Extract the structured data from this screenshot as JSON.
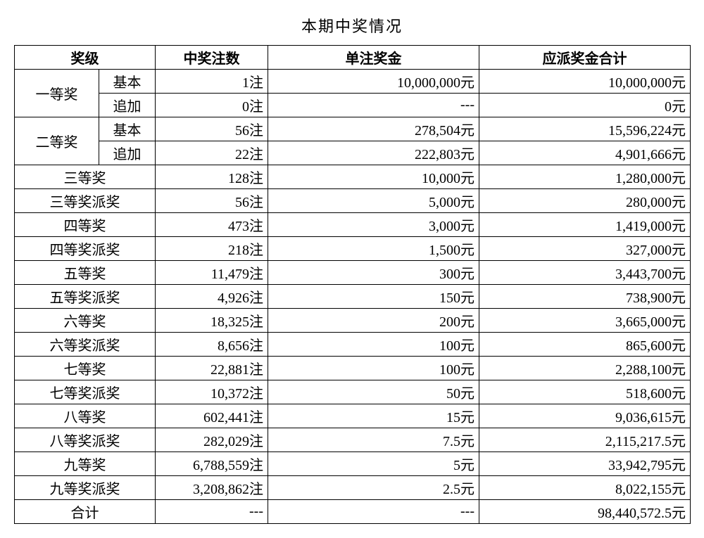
{
  "title": "本期中奖情况",
  "headers": {
    "level": "奖级",
    "count": "中奖注数",
    "unit": "单注奖金",
    "total": "应派奖金合计"
  },
  "groups": {
    "first": "一等奖",
    "second": "二等奖",
    "basic": "基本",
    "add": "追加"
  },
  "rows": {
    "r01": {
      "count": "1注",
      "unit": "10,000,000元",
      "total": "10,000,000元"
    },
    "r02": {
      "count": "0注",
      "unit": "---",
      "total": "0元"
    },
    "r03": {
      "count": "56注",
      "unit": "278,504元",
      "total": "15,596,224元"
    },
    "r04": {
      "count": "22注",
      "unit": "222,803元",
      "total": "4,901,666元"
    },
    "r05": {
      "level": "三等奖",
      "count": "128注",
      "unit": "10,000元",
      "total": "1,280,000元"
    },
    "r06": {
      "level": "三等奖派奖",
      "count": "56注",
      "unit": "5,000元",
      "total": "280,000元"
    },
    "r07": {
      "level": "四等奖",
      "count": "473注",
      "unit": "3,000元",
      "total": "1,419,000元"
    },
    "r08": {
      "level": "四等奖派奖",
      "count": "218注",
      "unit": "1,500元",
      "total": "327,000元"
    },
    "r09": {
      "level": "五等奖",
      "count": "11,479注",
      "unit": "300元",
      "total": "3,443,700元"
    },
    "r10": {
      "level": "五等奖派奖",
      "count": "4,926注",
      "unit": "150元",
      "total": "738,900元"
    },
    "r11": {
      "level": "六等奖",
      "count": "18,325注",
      "unit": "200元",
      "total": "3,665,000元"
    },
    "r12": {
      "level": "六等奖派奖",
      "count": "8,656注",
      "unit": "100元",
      "total": "865,600元"
    },
    "r13": {
      "level": "七等奖",
      "count": "22,881注",
      "unit": "100元",
      "total": "2,288,100元"
    },
    "r14": {
      "level": "七等奖派奖",
      "count": "10,372注",
      "unit": "50元",
      "total": "518,600元"
    },
    "r15": {
      "level": "八等奖",
      "count": "602,441注",
      "unit": "15元",
      "total": "9,036,615元"
    },
    "r16": {
      "level": "八等奖派奖",
      "count": "282,029注",
      "unit": "7.5元",
      "total": "2,115,217.5元"
    },
    "r17": {
      "level": "九等奖",
      "count": "6,788,559注",
      "unit": "5元",
      "total": "33,942,795元"
    },
    "r18": {
      "level": "九等奖派奖",
      "count": "3,208,862注",
      "unit": "2.5元",
      "total": "8,022,155元"
    },
    "r19": {
      "level": "合计",
      "count": "---",
      "unit": "---",
      "total": "98,440,572.5元"
    }
  }
}
